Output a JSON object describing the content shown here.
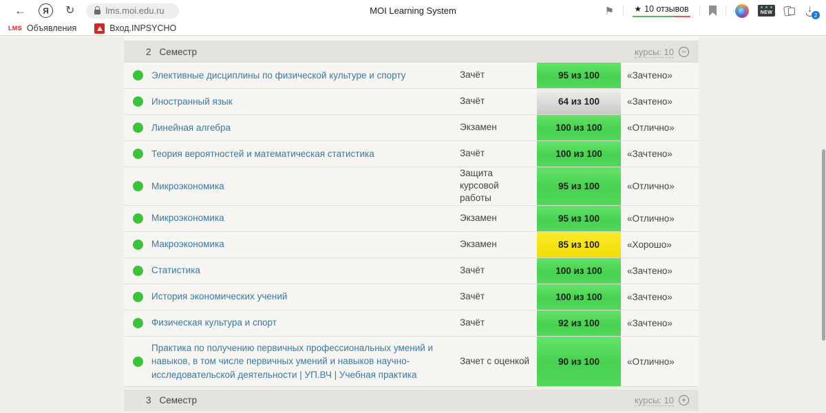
{
  "colors": {
    "badge_green": "#4bd253",
    "badge_gray": "#d9d9d7",
    "badge_yellow": "#f6e417",
    "status_dot_green": "#3cc33c",
    "course_link_blue": "#3879a3",
    "section_bar_gray": "#e4e2dd",
    "reviews_bar_green": "#57b65a",
    "reviews_bar_red": "#e2574c",
    "download_badge_blue": "#1876d2"
  },
  "browser": {
    "icons": {
      "back": "←",
      "refresh": "↻",
      "yandex_logo": "Я",
      "protect_flag": "⚑",
      "star": "★"
    },
    "url": "lms.moi.edu.ru",
    "page_title": "MOI Learning System",
    "reviews_text": "10 отзывов",
    "new_label": "NEW",
    "download_count": "2",
    "bookmarks": {
      "first_favicon_text": "LMS",
      "first_label": "Объявления",
      "second_label": "Вход.INPSYCHO"
    }
  },
  "table": {
    "header": {
      "index": "2",
      "title": "Семестр",
      "courses": "курсы: 10",
      "toggle": "−"
    },
    "footer": {
      "index": "3",
      "title": "Семестр",
      "courses": "курсы: 10",
      "toggle": "+"
    },
    "rows": [
      {
        "name": "Элективные дисциплины по физической культуре и спорту",
        "type": "Зачёт",
        "score": "95 из 100",
        "level": "green",
        "grade": "«Зачтено»"
      },
      {
        "name": "Иностранный язык",
        "type": "Зачёт",
        "score": "64 из 100",
        "level": "gray",
        "grade": "«Зачтено»"
      },
      {
        "name": "Линейная алгебра",
        "type": "Экзамен",
        "score": "100 из 100",
        "level": "green",
        "grade": "«Отлично»"
      },
      {
        "name": "Теория вероятностей и математическая статистика",
        "type": "Зачёт",
        "score": "100 из 100",
        "level": "green",
        "grade": "«Зачтено»"
      },
      {
        "name": "Микроэкономика",
        "type": "Защита курсовой работы",
        "score": "95 из 100",
        "level": "green",
        "grade": "«Отлично»"
      },
      {
        "name": "Микроэкономика",
        "type": "Экзамен",
        "score": "95 из 100",
        "level": "green",
        "grade": "«Отлично»"
      },
      {
        "name": "Макроэкономика",
        "type": "Экзамен",
        "score": "85 из 100",
        "level": "yellow",
        "grade": "«Хорошо»"
      },
      {
        "name": "Статистика",
        "type": "Зачёт",
        "score": "100 из 100",
        "level": "green",
        "grade": "«Зачтено»"
      },
      {
        "name": "История экономических учений",
        "type": "Зачёт",
        "score": "100 из 100",
        "level": "green",
        "grade": "«Зачтено»"
      },
      {
        "name": "Физическая культура и спорт",
        "type": "Зачёт",
        "score": "92 из 100",
        "level": "green",
        "grade": "«Зачтено»"
      },
      {
        "name": "Практика по получению первичных профессиональных умений и навыков, в том числе первичных умений и навыков научно-исследовательской деятельности | УП.ВЧ | Учебная практика",
        "type": "Зачет с оценкой",
        "score": "90 из 100",
        "level": "green",
        "grade": "«Отлично»"
      }
    ]
  }
}
